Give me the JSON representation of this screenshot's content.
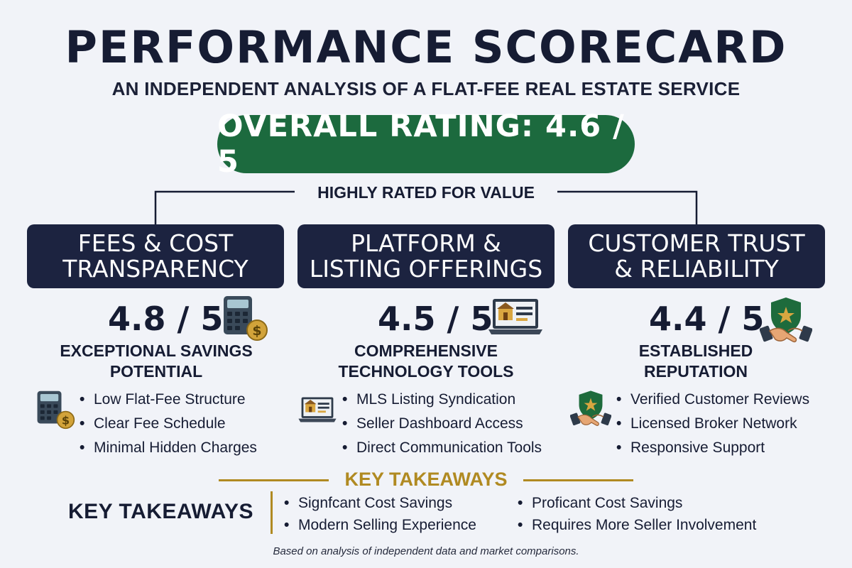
{
  "header": {
    "title": "PERFORMANCE SCORECARD",
    "subtitle": "AN INDEPENDENT ANALYSIS OF A FLAT-FEE REAL ESTATE SERVICE"
  },
  "overall": {
    "label": "OVERALL RATING: 4.6 / 5",
    "value": 4.6,
    "max": 5,
    "color": "#1c6a3e"
  },
  "summary_label": "HIGHLY RATED FOR VALUE",
  "categories": [
    {
      "title": "FEES & COST\nTRANSPARENCY",
      "score": "4.8 / 5",
      "score_value": 4.8,
      "icon": "calculator-coin-icon",
      "description": "EXCEPTIONAL SAVINGS\nPOTENTIAL",
      "list_icon": "calculator-coin-icon",
      "items": [
        "Low Flat-Fee Structure",
        "Clear Fee Schedule",
        "Minimal Hidden Charges"
      ]
    },
    {
      "title": "PLATFORM &\nLISTING OFFERINGS",
      "score": "4.5 / 5",
      "score_value": 4.5,
      "icon": "laptop-listing-icon",
      "description": "COMPREHENSIVE\nTECHNOLOGY TOOLS",
      "list_icon": "laptop-listing-icon",
      "items": [
        "MLS Listing Syndication",
        "Seller Dashboard Access",
        "Direct Communication Tools"
      ]
    },
    {
      "title": "CUSTOMER TRUST\n& RELIABILITY",
      "score": "4.4 / 5",
      "score_value": 4.4,
      "icon": "shield-handshake-icon",
      "description": "ESTABLISHED\nREPUTATION",
      "list_icon": "shield-handshake-icon",
      "items": [
        "Verified Customer Reviews",
        "Licensed Broker Network",
        "Responsive Support"
      ]
    }
  ],
  "takeaways": {
    "heading_center": "KEY TAKEAWAYS",
    "heading_left": "KEY TAKEAWAYS",
    "accent_color": "#b08a22",
    "column_1": [
      "Signfcant Cost Savings",
      "Modern Selling Experience"
    ],
    "column_2": [
      "Proficant Cost Savings",
      "Requires More Seller Involvement"
    ]
  },
  "footer": "Based on analysis of independent data and market comparisons."
}
